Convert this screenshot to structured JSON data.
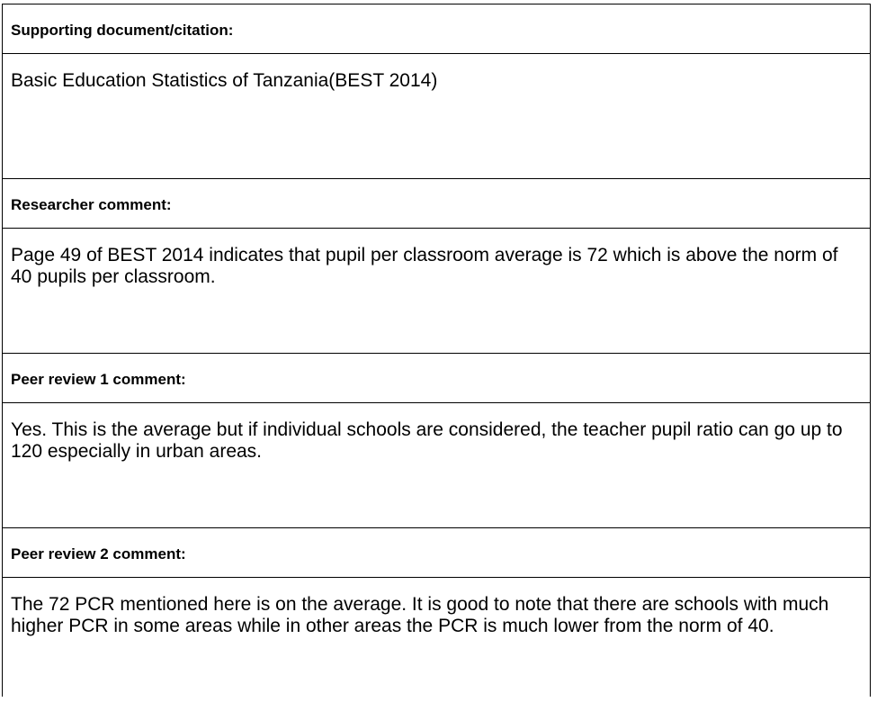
{
  "sections": [
    {
      "label": "Supporting document/citation:",
      "text": "Basic Education Statistics of Tanzania(BEST 2014)"
    },
    {
      "label": "Researcher comment:",
      "text": "Page 49 of BEST 2014 indicates that pupil per classroom average is 72 which is above the norm of 40 pupils per classroom."
    },
    {
      "label": "Peer review 1 comment:",
      "text": "Yes. This is the average but if individual schools are considered, the teacher pupil ratio can go up to 120 especially in urban areas."
    },
    {
      "label": "Peer review 2 comment:",
      "text": "The 72 PCR mentioned here is on the average. It is good to note that there are schools with much higher PCR in some areas while in other areas the PCR is much lower from the norm of 40."
    }
  ]
}
